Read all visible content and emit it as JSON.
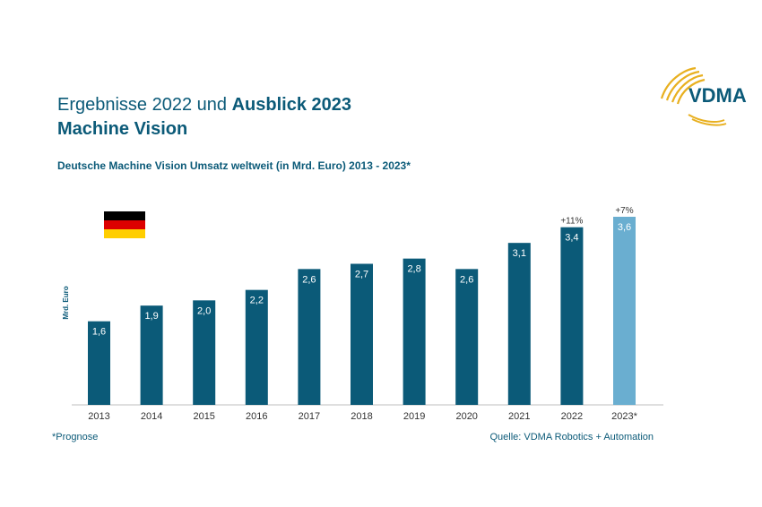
{
  "header": {
    "title_regular": "Ergebnisse 2022 und ",
    "title_bold": "Ausblick 2023",
    "title_line2": "Machine Vision"
  },
  "logo": {
    "text": "VDMA"
  },
  "colors": {
    "primary": "#0b5a78",
    "forecast": "#6aaed0",
    "accent": "#e8b020",
    "flag_black": "#000000",
    "flag_red": "#dd0000",
    "flag_gold": "#ffce00"
  },
  "chart_data": {
    "type": "bar",
    "title": "Deutsche Machine Vision Umsatz weltweit (in Mrd. Euro) 2013 - 2023*",
    "ylabel": "Mrd. Euro",
    "xlabel": "",
    "categories": [
      "2013",
      "2014",
      "2015",
      "2016",
      "2017",
      "2018",
      "2019",
      "2020",
      "2021",
      "2022",
      "2023*"
    ],
    "values": [
      1.6,
      1.9,
      2.0,
      2.2,
      2.6,
      2.7,
      2.8,
      2.6,
      3.1,
      3.4,
      3.6
    ],
    "value_labels": [
      "1,6",
      "1,9",
      "2,0",
      "2,2",
      "2,6",
      "2,7",
      "2,8",
      "2,6",
      "3,1",
      "3,4",
      "3,6"
    ],
    "forecast": [
      false,
      false,
      false,
      false,
      false,
      false,
      false,
      false,
      false,
      false,
      true
    ],
    "growth_labels": [
      "",
      "",
      "",
      "",
      "",
      "",
      "",
      "",
      "",
      "+11%",
      "+7%"
    ],
    "ylim": [
      0,
      3.6
    ],
    "grid": false,
    "legend": "none"
  },
  "footer": {
    "note": "*Prognose",
    "source": "Quelle: VDMA Robotics + Automation"
  }
}
